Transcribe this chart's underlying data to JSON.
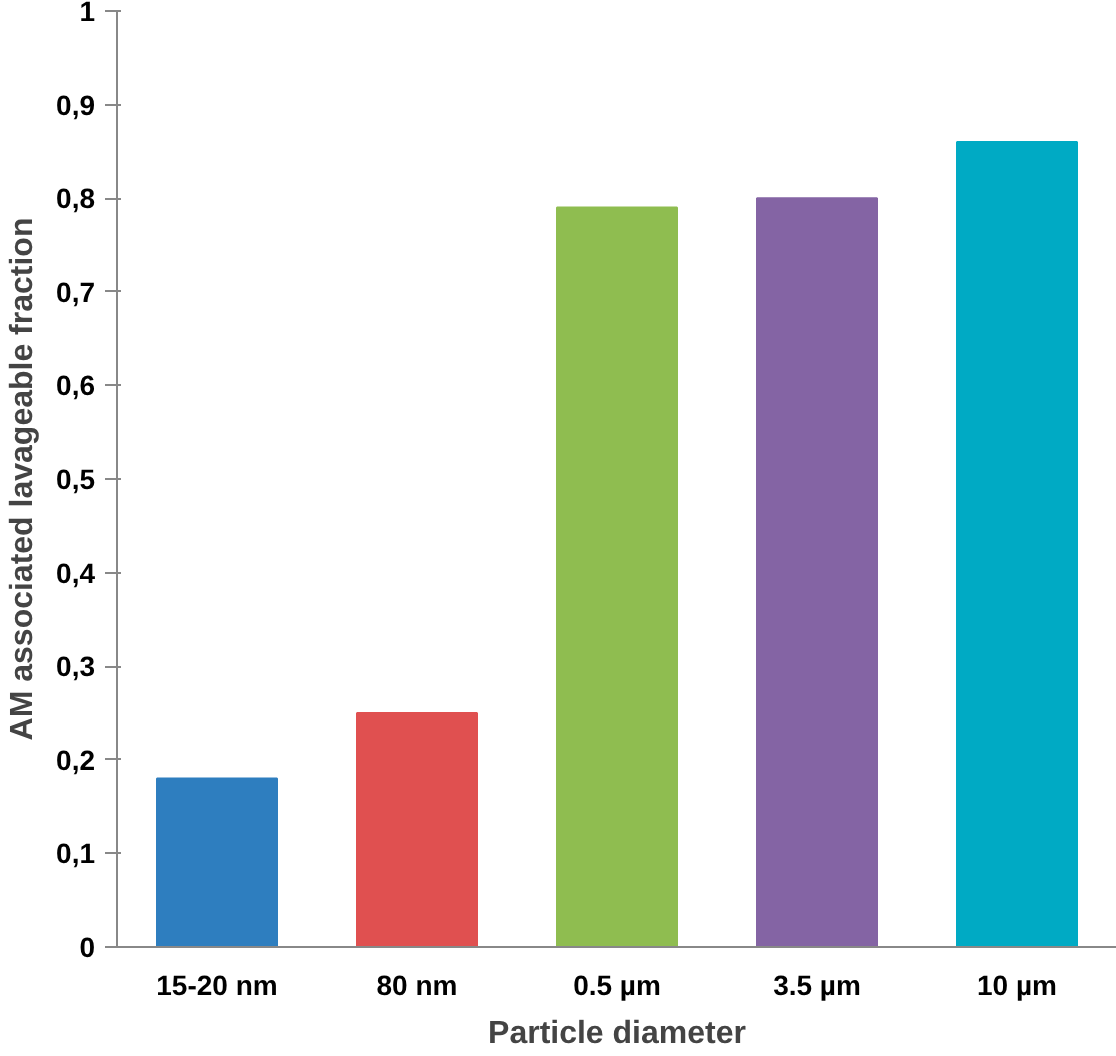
{
  "chart_data": {
    "type": "bar",
    "xlabel": "Particle diameter",
    "ylabel": "AM associated lavageable fraction",
    "categories": [
      "15-20 nm",
      "80 nm",
      "0.5 µm",
      "3.5 µm",
      "10 µm"
    ],
    "values": [
      0.18,
      0.25,
      0.79,
      0.8,
      0.86
    ],
    "colors": [
      "#2e7ebf",
      "#e05050",
      "#8fbd50",
      "#8464a4",
      "#00aac4"
    ],
    "ylim": [
      0,
      1
    ],
    "yticks": [
      {
        "value": 0,
        "label": "0"
      },
      {
        "value": 0.1,
        "label": "0,1"
      },
      {
        "value": 0.2,
        "label": "0,2"
      },
      {
        "value": 0.3,
        "label": "0,3"
      },
      {
        "value": 0.4,
        "label": "0,4"
      },
      {
        "value": 0.5,
        "label": "0,5"
      },
      {
        "value": 0.6,
        "label": "0,6"
      },
      {
        "value": 0.7,
        "label": "0,7"
      },
      {
        "value": 0.8,
        "label": "0,8"
      },
      {
        "value": 0.9,
        "label": "0,9"
      },
      {
        "value": 1,
        "label": "1"
      }
    ],
    "grid": false
  }
}
